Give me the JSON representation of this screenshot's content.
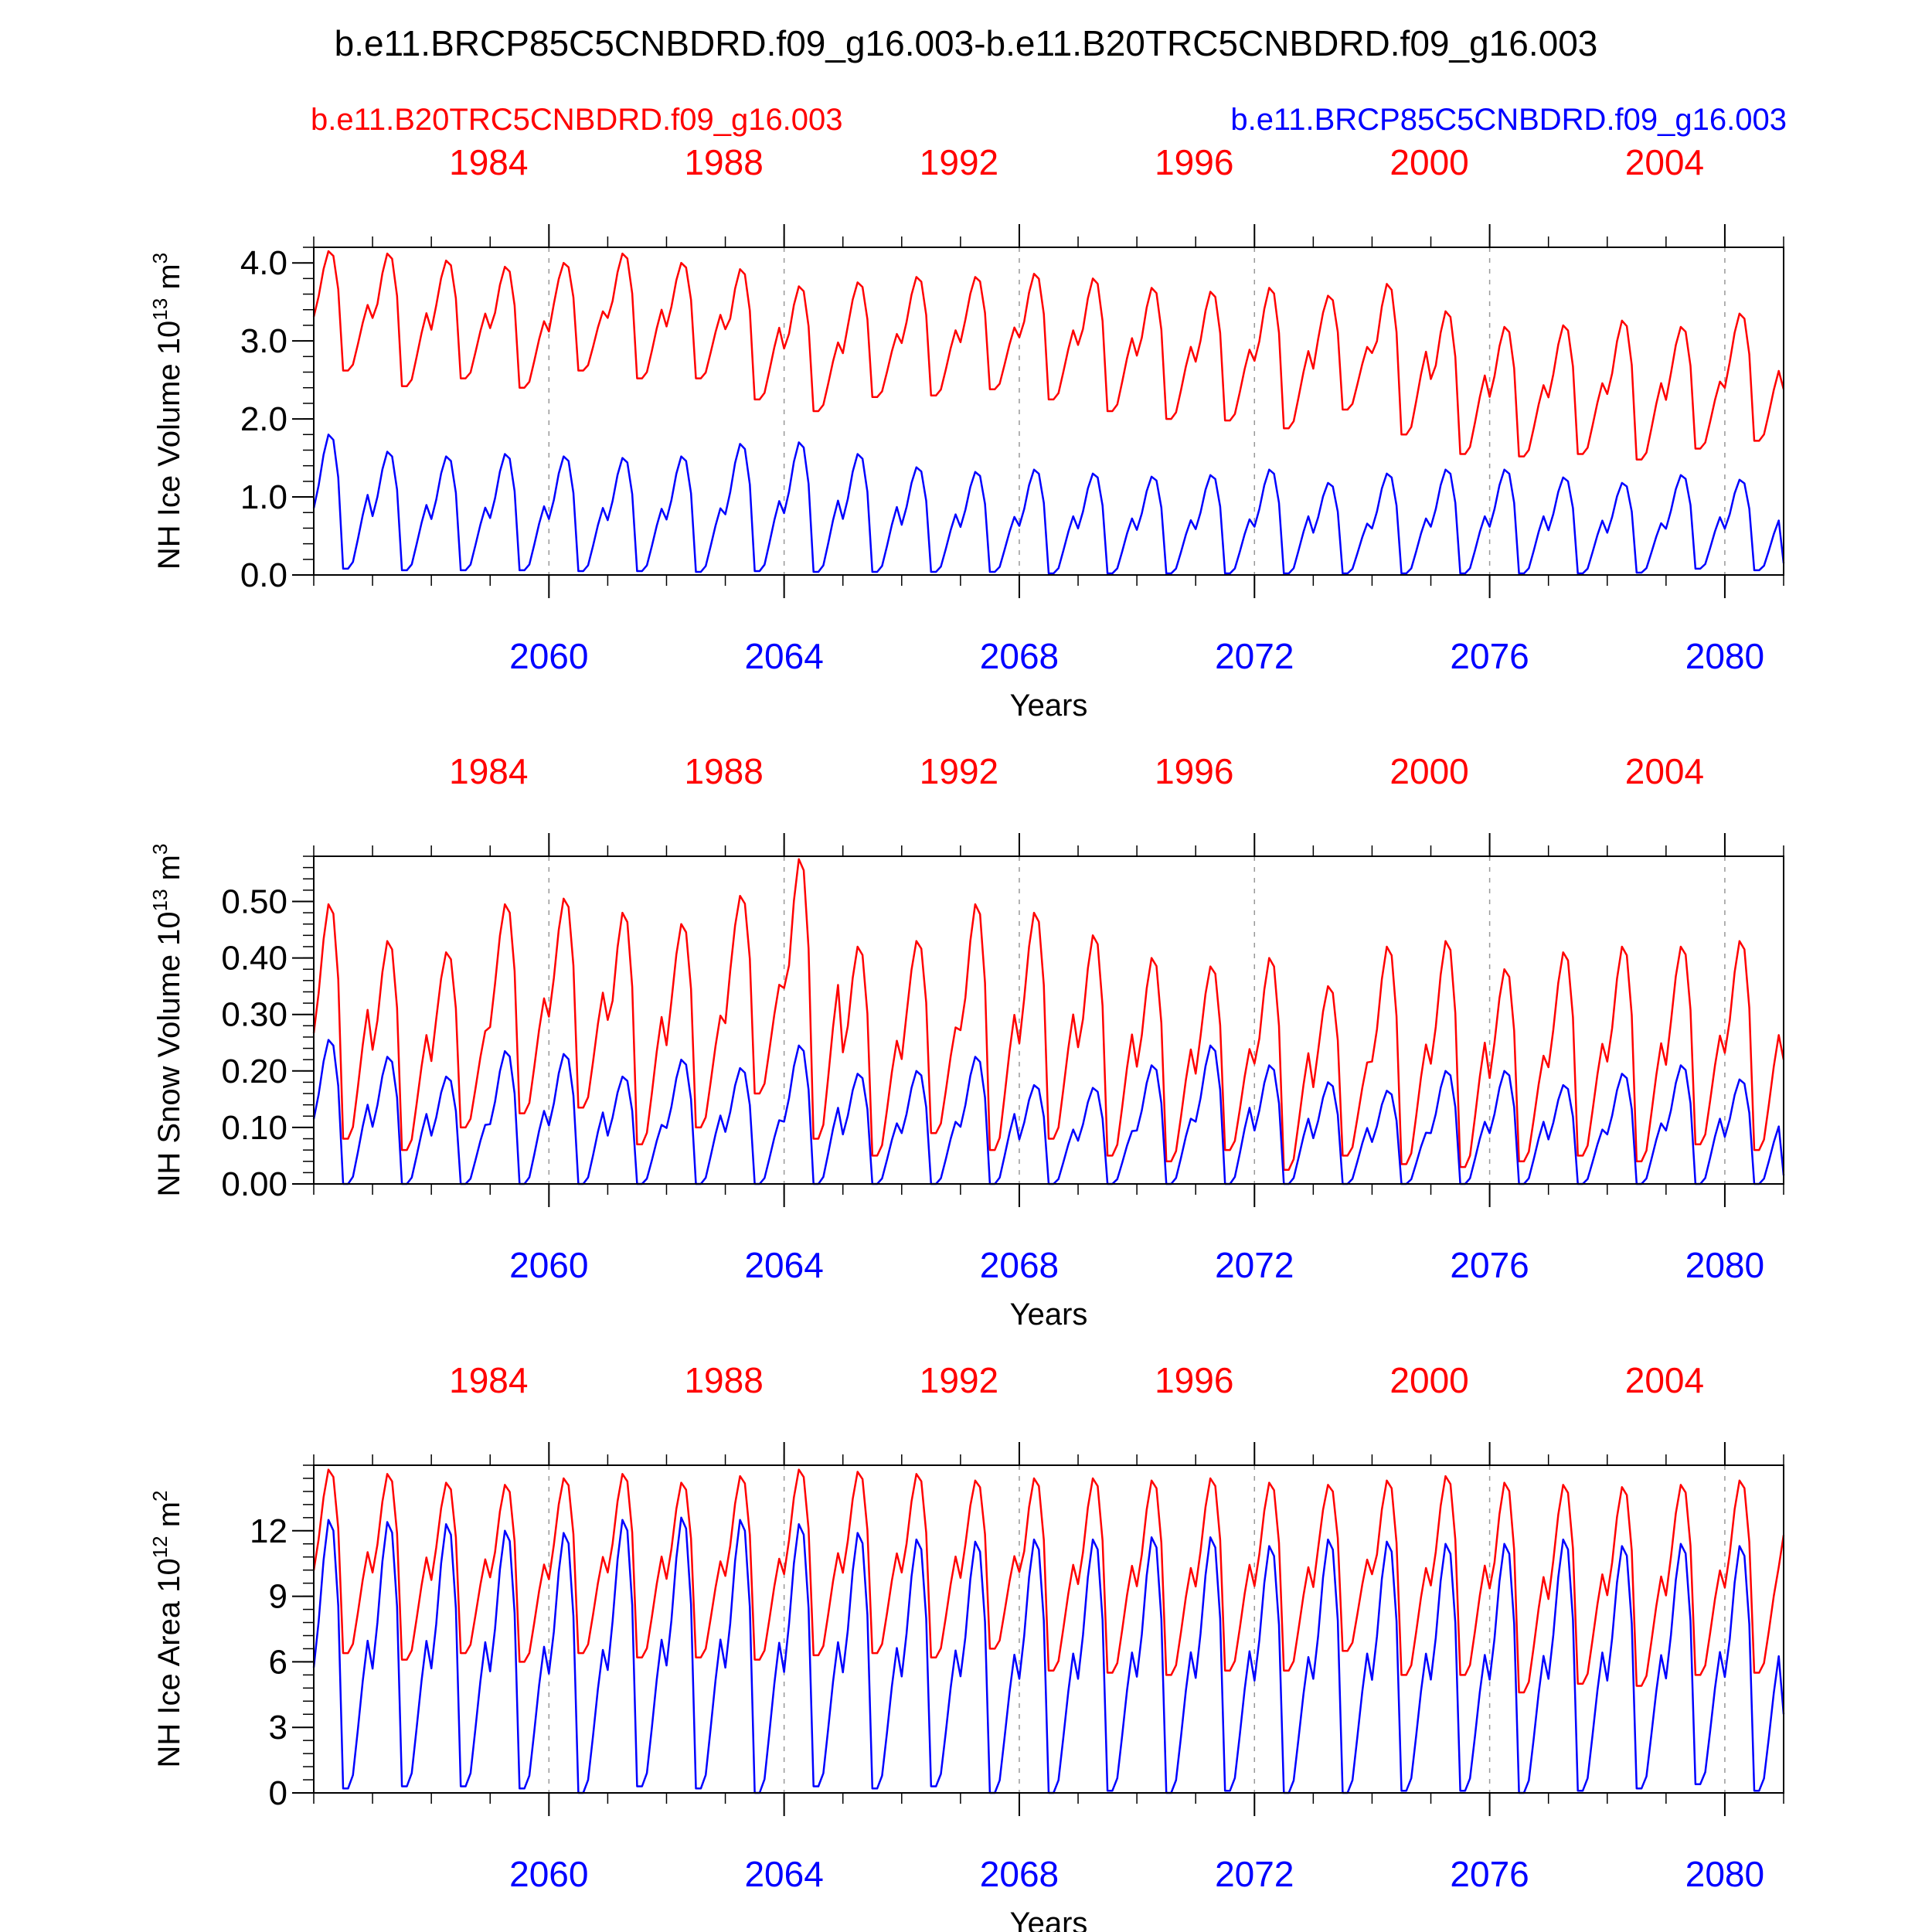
{
  "title": "b.e11.BRCP85C5CNBDRD.f09_g16.003-b.e11.B20TRC5CNBDRD.f09_g16.003",
  "legend": {
    "red_label": "b.e11.B20TRC5CNBDRD.f09_g16.003",
    "blue_label": "b.e11.BRCP85C5CNBDRD.f09_g16.003"
  },
  "colors": {
    "red": "#ff0000",
    "blue": "#0000ff",
    "axis": "#000000",
    "grid": "#999999"
  },
  "chart_data": [
    {
      "type": "line",
      "title": "",
      "ylabel": "NH Ice Volume 10^13 m^3",
      "ylabel_text": "NH Ice Volume 10",
      "ylabel_exp": "13",
      "ylabel_unit": " m",
      "ylabel_unit_exp": "3",
      "xlabel": "Years",
      "ylim": [
        0.0,
        4.2
      ],
      "yticks": [
        0.0,
        1.0,
        2.0,
        3.0,
        4.0
      ],
      "ytick_labels": [
        "0.0",
        "1.0",
        "2.0",
        "3.0",
        "4.0"
      ],
      "yminor_step": 0.2,
      "xlim": [
        2056,
        2081
      ],
      "bottom_ticks": [
        2060,
        2064,
        2068,
        2072,
        2076,
        2080
      ],
      "bottom_tick_labels": [
        "2060",
        "2064",
        "2068",
        "2072",
        "2076",
        "2080"
      ],
      "top_tick_labels": [
        "1984",
        "1988",
        "1992",
        "1996",
        "2000",
        "2004"
      ],
      "series": [
        {
          "name": "b.e11.B20TRC5CNBDRD.f09_g16.003",
          "color": "red",
          "x_start": 2056,
          "max": [
            4.15,
            4.12,
            4.03,
            3.95,
            4.0,
            4.12,
            4.0,
            3.92,
            3.7,
            3.75,
            3.82,
            3.82,
            3.86,
            3.8,
            3.68,
            3.63,
            3.68,
            3.58,
            3.73,
            3.38,
            3.18,
            3.2,
            3.26,
            3.18,
            3.35
          ],
          "min": [
            2.62,
            2.42,
            2.52,
            2.4,
            2.62,
            2.52,
            2.52,
            2.25,
            2.1,
            2.28,
            2.3,
            2.38,
            2.25,
            2.1,
            2.0,
            1.98,
            1.88,
            2.12,
            1.8,
            1.55,
            1.52,
            1.55,
            1.48,
            1.62,
            1.72
          ],
          "end_value": 2.38
        },
        {
          "name": "b.e11.BRCP85C5CNBDRD.f09_g16.003",
          "color": "blue",
          "x_start": 2056,
          "max": [
            1.8,
            1.58,
            1.52,
            1.55,
            1.52,
            1.5,
            1.52,
            1.68,
            1.7,
            1.55,
            1.38,
            1.32,
            1.35,
            1.3,
            1.26,
            1.28,
            1.35,
            1.18,
            1.3,
            1.35,
            1.35,
            1.25,
            1.18,
            1.28,
            1.22
          ],
          "min": [
            0.08,
            0.06,
            0.06,
            0.06,
            0.05,
            0.05,
            0.04,
            0.05,
            0.04,
            0.04,
            0.04,
            0.04,
            0.02,
            0.02,
            0.02,
            0.02,
            0.02,
            0.02,
            0.02,
            0.02,
            0.02,
            0.02,
            0.03,
            0.08,
            0.06
          ],
          "end_value": 0.15
        }
      ]
    },
    {
      "type": "line",
      "title": "",
      "ylabel": "NH Snow Volume 10^13 m^3",
      "ylabel_text": "NH Snow Volume 10",
      "ylabel_exp": "13",
      "ylabel_unit": " m",
      "ylabel_unit_exp": "3",
      "xlabel": "Years",
      "ylim": [
        0.0,
        0.58
      ],
      "yticks": [
        0.0,
        0.1,
        0.2,
        0.3,
        0.4,
        0.5
      ],
      "ytick_labels": [
        "0.00",
        "0.10",
        "0.20",
        "0.30",
        "0.40",
        "0.50"
      ],
      "yminor_step": 0.02,
      "xlim": [
        2056,
        2081
      ],
      "bottom_ticks": [
        2060,
        2064,
        2068,
        2072,
        2076,
        2080
      ],
      "bottom_tick_labels": [
        "2060",
        "2064",
        "2068",
        "2072",
        "2076",
        "2080"
      ],
      "top_tick_labels": [
        "1984",
        "1988",
        "1992",
        "1996",
        "2000",
        "2004"
      ],
      "series": [
        {
          "name": "b.e11.B20TRC5CNBDRD.f09_g16.003",
          "color": "red",
          "x_start": 2056,
          "max": [
            0.495,
            0.43,
            0.41,
            0.495,
            0.505,
            0.48,
            0.46,
            0.51,
            0.575,
            0.42,
            0.43,
            0.495,
            0.48,
            0.44,
            0.4,
            0.385,
            0.4,
            0.35,
            0.42,
            0.43,
            0.38,
            0.41,
            0.42,
            0.42,
            0.43
          ],
          "min": [
            0.08,
            0.06,
            0.1,
            0.125,
            0.135,
            0.07,
            0.1,
            0.16,
            0.08,
            0.05,
            0.09,
            0.06,
            0.08,
            0.05,
            0.04,
            0.06,
            0.025,
            0.05,
            0.035,
            0.03,
            0.04,
            0.05,
            0.04,
            0.07,
            0.06
          ],
          "end_value": 0.22
        },
        {
          "name": "b.e11.BRCP85C5CNBDRD.f09_g16.003",
          "color": "blue",
          "x_start": 2056,
          "max": [
            0.255,
            0.225,
            0.19,
            0.235,
            0.23,
            0.19,
            0.22,
            0.205,
            0.245,
            0.195,
            0.2,
            0.225,
            0.175,
            0.17,
            0.21,
            0.245,
            0.21,
            0.18,
            0.165,
            0.2,
            0.2,
            0.175,
            0.195,
            0.21,
            0.185
          ],
          "min": [
            0.0,
            0.0,
            0.0,
            0.0,
            0.0,
            0.0,
            0.0,
            0.0,
            0.0,
            0.0,
            0.0,
            0.0,
            0.0,
            0.0,
            0.0,
            0.0,
            0.0,
            0.0,
            0.0,
            0.0,
            0.0,
            0.0,
            0.0,
            0.0,
            0.0
          ],
          "end_value": 0.015
        }
      ]
    },
    {
      "type": "line",
      "title": "",
      "ylabel": "NH Ice Area 10^12 m^2",
      "ylabel_text": "NH Ice Area 10",
      "ylabel_exp": "12",
      "ylabel_unit": " m",
      "ylabel_unit_exp": "2",
      "xlabel": "Years",
      "ylim": [
        0,
        15
      ],
      "yticks": [
        0,
        3,
        6,
        9,
        12
      ],
      "ytick_labels": [
        "0",
        "3",
        "6",
        "9",
        "12"
      ],
      "yminor_step": 0.6,
      "xlim": [
        2056,
        2081
      ],
      "bottom_ticks": [
        2060,
        2064,
        2068,
        2072,
        2076,
        2080
      ],
      "bottom_tick_labels": [
        "2060",
        "2064",
        "2068",
        "2072",
        "2076",
        "2080"
      ],
      "top_tick_labels": [
        "1984",
        "1988",
        "1992",
        "1996",
        "2000",
        "2004"
      ],
      "series": [
        {
          "name": "b.e11.B20TRC5CNBDRD.f09_g16.003",
          "color": "red",
          "x_start": 2056,
          "max": [
            14.8,
            14.6,
            14.2,
            14.1,
            14.4,
            14.6,
            14.2,
            14.5,
            14.8,
            14.7,
            14.6,
            14.3,
            14.4,
            14.4,
            14.3,
            14.4,
            14.2,
            14.1,
            14.3,
            14.5,
            14.2,
            14.1,
            14.0,
            14.1,
            14.3
          ],
          "min": [
            6.4,
            6.1,
            6.4,
            6.0,
            6.4,
            6.2,
            6.2,
            6.1,
            6.3,
            6.4,
            6.2,
            6.6,
            5.6,
            5.5,
            5.4,
            5.6,
            5.6,
            6.5,
            5.4,
            5.4,
            4.6,
            5.0,
            4.9,
            5.4,
            5.5
          ],
          "end_value": 11.8
        },
        {
          "name": "b.e11.BRCP85C5CNBDRD.f09_g16.003",
          "color": "blue",
          "x_start": 2056,
          "max": [
            12.5,
            12.4,
            12.3,
            12.0,
            11.9,
            12.5,
            12.6,
            12.5,
            12.3,
            11.9,
            11.6,
            11.5,
            11.6,
            11.6,
            11.7,
            11.7,
            11.3,
            11.6,
            11.5,
            11.4,
            11.4,
            11.6,
            11.3,
            11.4,
            11.3
          ],
          "min": [
            0.2,
            0.3,
            0.3,
            0.2,
            0.0,
            0.3,
            0.2,
            0.0,
            0.3,
            0.2,
            0.3,
            0.0,
            0.0,
            0.1,
            0.0,
            0.1,
            0.0,
            0.0,
            0.1,
            0.1,
            0.0,
            0.1,
            0.2,
            0.4,
            0.1
          ],
          "end_value": 3.6
        }
      ]
    }
  ]
}
